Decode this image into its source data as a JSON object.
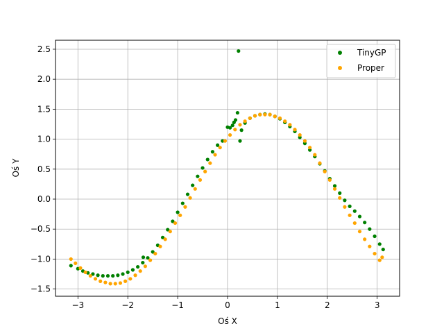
{
  "chart_data": {
    "type": "scatter",
    "title": "",
    "xlabel": "Oś X",
    "ylabel": "Oś Y",
    "xlim": [
      -3.45,
      3.45
    ],
    "ylim": [
      -1.62,
      2.65
    ],
    "xticks": [
      -3,
      -2,
      -1,
      0,
      1,
      2,
      3
    ],
    "xtick_labels": [
      "−3",
      "−2",
      "−1",
      "0",
      "1",
      "2",
      "3"
    ],
    "yticks": [
      -1.5,
      -1.0,
      -0.5,
      0.0,
      0.5,
      1.0,
      1.5,
      2.0,
      2.5
    ],
    "ytick_labels": [
      "−1.5",
      "−1.0",
      "−0.5",
      "0.0",
      "0.5",
      "1.0",
      "1.5",
      "2.0",
      "2.5"
    ],
    "grid": true,
    "legend_position": "top-right",
    "series": [
      {
        "name": "TinyGP",
        "color": "#008000",
        "points": [
          [
            -3.14,
            -1.11
          ],
          [
            -3.0,
            -1.16
          ],
          [
            -2.9,
            -1.2
          ],
          [
            -2.8,
            -1.23
          ],
          [
            -2.7,
            -1.25
          ],
          [
            -2.6,
            -1.27
          ],
          [
            -2.5,
            -1.28
          ],
          [
            -2.4,
            -1.28
          ],
          [
            -2.3,
            -1.28
          ],
          [
            -2.2,
            -1.27
          ],
          [
            -2.1,
            -1.25
          ],
          [
            -2.0,
            -1.22
          ],
          [
            -1.9,
            -1.18
          ],
          [
            -1.8,
            -1.13
          ],
          [
            -1.7,
            -1.06
          ],
          [
            -1.69,
            -0.97
          ],
          [
            -1.6,
            -0.98
          ],
          [
            -1.5,
            -0.88
          ],
          [
            -1.4,
            -0.77
          ],
          [
            -1.3,
            -0.64
          ],
          [
            -1.2,
            -0.51
          ],
          [
            -1.1,
            -0.37
          ],
          [
            -1.0,
            -0.22
          ],
          [
            -0.9,
            -0.07
          ],
          [
            -0.8,
            0.08
          ],
          [
            -0.7,
            0.23
          ],
          [
            -0.6,
            0.38
          ],
          [
            -0.5,
            0.52
          ],
          [
            -0.4,
            0.66
          ],
          [
            -0.3,
            0.79
          ],
          [
            -0.2,
            0.9
          ],
          [
            -0.1,
            0.97
          ],
          [
            0.0,
            1.2
          ],
          [
            0.05,
            1.19
          ],
          [
            0.1,
            1.23
          ],
          [
            0.13,
            1.28
          ],
          [
            0.16,
            1.32
          ],
          [
            0.2,
            1.44
          ],
          [
            0.22,
            2.47
          ],
          [
            0.25,
            0.97
          ],
          [
            0.28,
            1.15
          ],
          [
            0.35,
            1.27
          ],
          [
            0.45,
            1.35
          ],
          [
            0.55,
            1.39
          ],
          [
            0.65,
            1.41
          ],
          [
            0.75,
            1.42
          ],
          [
            0.85,
            1.41
          ],
          [
            0.95,
            1.38
          ],
          [
            1.05,
            1.34
          ],
          [
            1.15,
            1.28
          ],
          [
            1.25,
            1.21
          ],
          [
            1.35,
            1.13
          ],
          [
            1.45,
            1.03
          ],
          [
            1.55,
            0.93
          ],
          [
            1.65,
            0.82
          ],
          [
            1.75,
            0.71
          ],
          [
            1.85,
            0.59
          ],
          [
            1.95,
            0.47
          ],
          [
            2.05,
            0.34
          ],
          [
            2.15,
            0.22
          ],
          [
            2.25,
            0.1
          ],
          [
            2.35,
            -0.02
          ],
          [
            2.45,
            -0.12
          ],
          [
            2.55,
            -0.2
          ],
          [
            2.65,
            -0.29
          ],
          [
            2.75,
            -0.39
          ],
          [
            2.85,
            -0.5
          ],
          [
            2.95,
            -0.62
          ],
          [
            3.05,
            -0.75
          ],
          [
            3.12,
            -0.84
          ]
        ]
      },
      {
        "name": "Proper",
        "color": "#ffa500",
        "points": [
          [
            -3.14,
            -1.0
          ],
          [
            -3.05,
            -1.07
          ],
          [
            -2.95,
            -1.15
          ],
          [
            -2.85,
            -1.22
          ],
          [
            -2.75,
            -1.28
          ],
          [
            -2.65,
            -1.33
          ],
          [
            -2.55,
            -1.37
          ],
          [
            -2.45,
            -1.39
          ],
          [
            -2.35,
            -1.41
          ],
          [
            -2.25,
            -1.41
          ],
          [
            -2.15,
            -1.4
          ],
          [
            -2.05,
            -1.37
          ],
          [
            -1.95,
            -1.33
          ],
          [
            -1.85,
            -1.27
          ],
          [
            -1.75,
            -1.2
          ],
          [
            -1.65,
            -1.12
          ],
          [
            -1.55,
            -1.02
          ],
          [
            -1.45,
            -0.91
          ],
          [
            -1.35,
            -0.79
          ],
          [
            -1.25,
            -0.67
          ],
          [
            -1.15,
            -0.54
          ],
          [
            -1.05,
            -0.4
          ],
          [
            -0.95,
            -0.27
          ],
          [
            -0.85,
            -0.13
          ],
          [
            -0.75,
            0.02
          ],
          [
            -0.65,
            0.17
          ],
          [
            -0.55,
            0.32
          ],
          [
            -0.45,
            0.46
          ],
          [
            -0.35,
            0.6
          ],
          [
            -0.25,
            0.74
          ],
          [
            -0.15,
            0.86
          ],
          [
            -0.05,
            0.97
          ],
          [
            0.05,
            1.07
          ],
          [
            0.15,
            1.16
          ],
          [
            0.25,
            1.24
          ],
          [
            0.35,
            1.3
          ],
          [
            0.45,
            1.35
          ],
          [
            0.55,
            1.39
          ],
          [
            0.65,
            1.41
          ],
          [
            0.75,
            1.41
          ],
          [
            0.85,
            1.41
          ],
          [
            0.95,
            1.38
          ],
          [
            1.05,
            1.35
          ],
          [
            1.15,
            1.3
          ],
          [
            1.25,
            1.24
          ],
          [
            1.35,
            1.16
          ],
          [
            1.45,
            1.07
          ],
          [
            1.55,
            0.97
          ],
          [
            1.65,
            0.86
          ],
          [
            1.75,
            0.74
          ],
          [
            1.85,
            0.6
          ],
          [
            1.95,
            0.46
          ],
          [
            2.05,
            0.32
          ],
          [
            2.15,
            0.17
          ],
          [
            2.25,
            0.02
          ],
          [
            2.35,
            -0.13
          ],
          [
            2.45,
            -0.27
          ],
          [
            2.55,
            -0.4
          ],
          [
            2.65,
            -0.54
          ],
          [
            2.75,
            -0.67
          ],
          [
            2.85,
            -0.79
          ],
          [
            2.95,
            -0.91
          ],
          [
            3.05,
            -1.02
          ],
          [
            3.1,
            -0.97
          ]
        ]
      }
    ]
  }
}
